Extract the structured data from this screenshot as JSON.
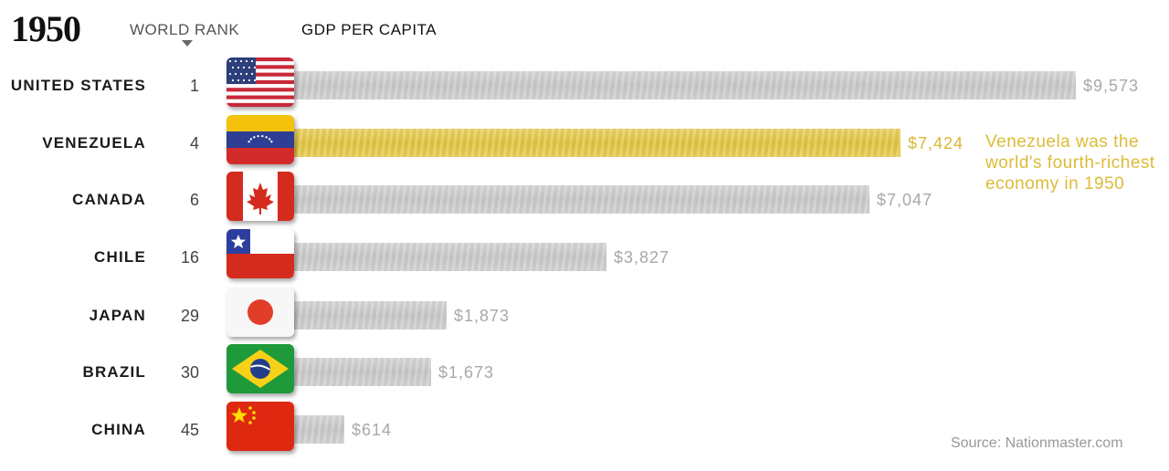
{
  "chart_data": {
    "type": "bar",
    "orientation": "horizontal",
    "title": "1950",
    "rank_header": "WORLD RANK",
    "value_header": "GDP PER CAPITA",
    "categories": [
      "UNITED STATES",
      "VENEZUELA",
      "CANADA",
      "CHILE",
      "JAPAN",
      "BRAZIL",
      "CHINA"
    ],
    "ranks": [
      "1",
      "4",
      "6",
      "16",
      "29",
      "30",
      "45"
    ],
    "values": [
      9573,
      7424,
      7047,
      3827,
      1873,
      1673,
      614
    ],
    "value_labels": [
      "$9,573",
      "$7,424",
      "$7,047",
      "$3,827",
      "$1,873",
      "$1,673",
      "$614"
    ],
    "flags": [
      "us-flag",
      "venezuela-flag",
      "canada-flag",
      "chile-flag",
      "japan-flag",
      "brazil-flag",
      "china-flag"
    ],
    "highlight": "VENEZUELA",
    "annotation": "Venezuela was the world's fourth-richest economy in 1950",
    "source": "Source: Nationmaster.com",
    "xlim": [
      0,
      9573
    ],
    "colors": {
      "bar": "#cfcfcf",
      "highlight": "#e2c441",
      "value_text": "#a8a8a8",
      "highlight_text": "#d8b733"
    }
  }
}
